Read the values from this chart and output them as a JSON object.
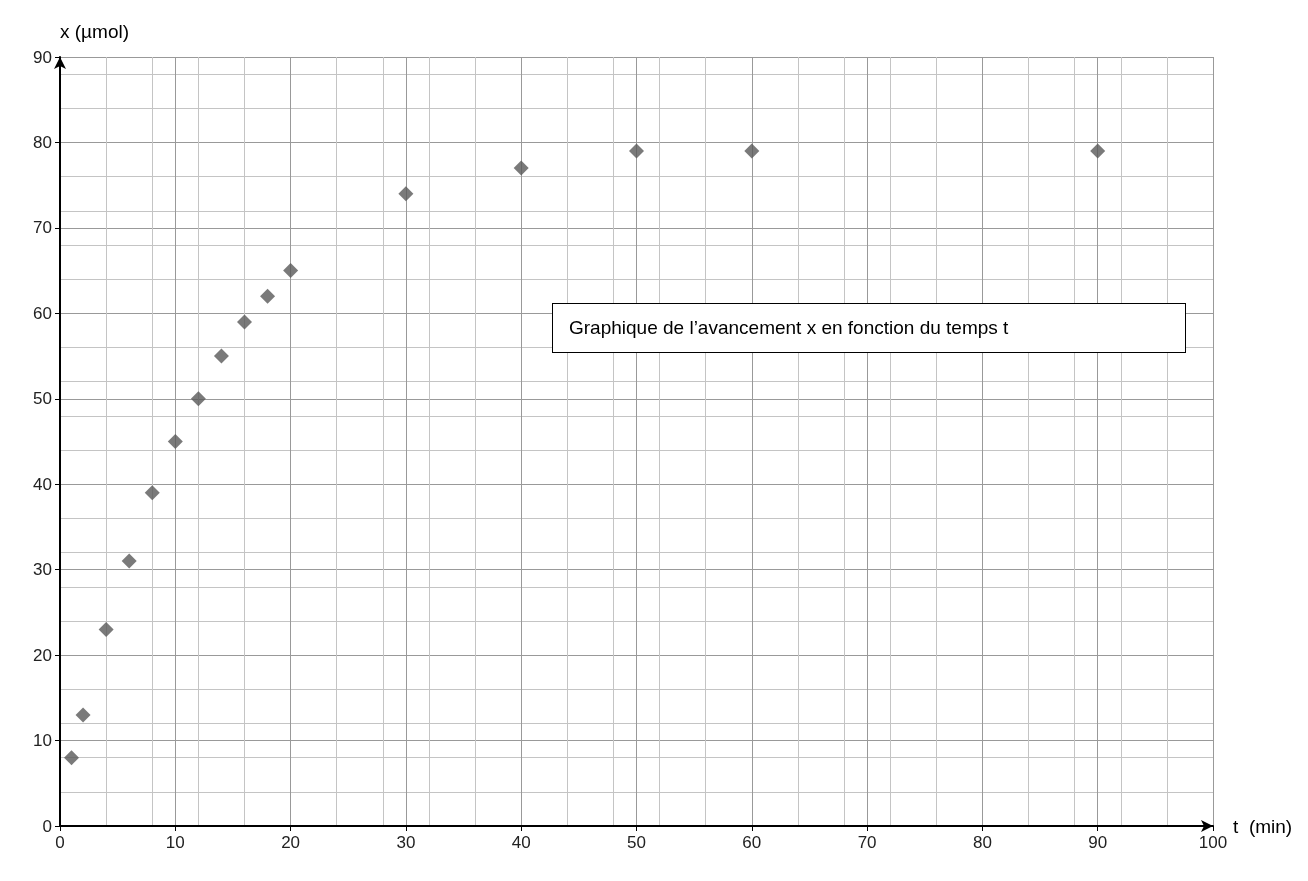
{
  "chart_data": {
    "type": "scatter",
    "xlabel": "t  (min)",
    "ylabel": "x (µmol)",
    "annotations": [
      "Graphique de l’avancement x en fonction du temps t"
    ],
    "x": [
      1,
      2,
      4,
      6,
      8,
      10,
      12,
      14,
      16,
      18,
      20,
      30,
      40,
      50,
      60,
      90
    ],
    "values": [
      8,
      13,
      23,
      31,
      39,
      45,
      50,
      55,
      59,
      62,
      65,
      74,
      77,
      79,
      79,
      79
    ],
    "color": "#595959",
    "marker": "diamond",
    "xlim": [
      0,
      100
    ],
    "xticks": [
      0,
      10,
      20,
      30,
      40,
      50,
      60,
      70,
      80,
      90,
      100
    ],
    "ylim": [
      0,
      90
    ],
    "yticks": [
      0,
      10,
      20,
      30,
      40,
      50,
      60,
      70,
      80,
      90
    ],
    "grid": true
  }
}
